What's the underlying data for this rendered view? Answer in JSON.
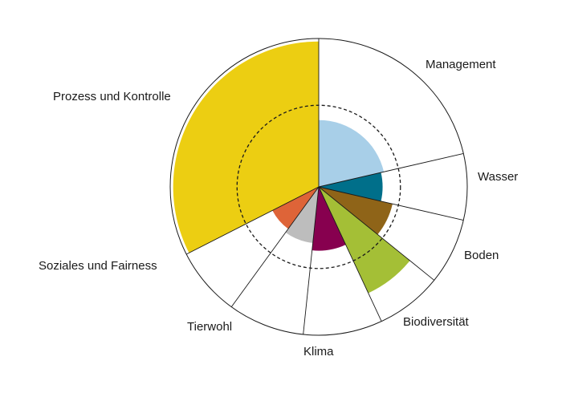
{
  "chart_data": {
    "type": "polar-area",
    "title": "",
    "categories": [
      "Management",
      "Wasser",
      "Boden",
      "Biodiversität",
      "Klima",
      "Tierwohl",
      "Soziales und Fairness",
      "Prozess und Kontrolle"
    ],
    "sector_boundaries_deg": [
      0,
      77,
      103,
      129,
      155,
      186,
      216,
      243,
      360
    ],
    "values": [
      0.45,
      0.43,
      0.51,
      0.79,
      0.43,
      0.38,
      0.35,
      0.98
    ],
    "reference_ring": 0.55,
    "colors": [
      "#a8cfe8",
      "#006f8a",
      "#8f6418",
      "#a4bf36",
      "#87004f",
      "#bdbdbd",
      "#de6438",
      "#ecce12"
    ],
    "reference_ring_style": "dashed",
    "grid": false,
    "legend": "none"
  }
}
